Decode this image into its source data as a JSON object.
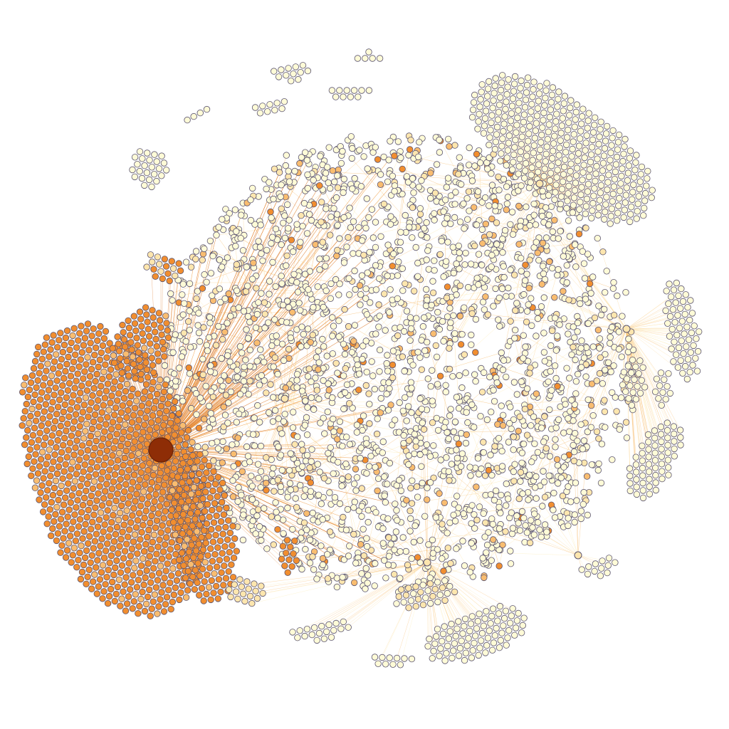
{
  "graph": {
    "kind": "force-directed network",
    "background_color": "#ffffff",
    "node_stroke_color": "#5a5470",
    "palette": {
      "pale": "#fffbd7",
      "light": "#fde6ae",
      "medium": "#f9bd70",
      "strong": "#f18e2f",
      "hub": "#8e2d06"
    },
    "edge_colors": [
      "#fde9a8",
      "#fbd28a",
      "#f6b25a",
      "#f09535",
      "#d96b12"
    ],
    "clusters": [
      {
        "name": "main-core",
        "shade": "pale",
        "mixed": true
      },
      {
        "name": "hub-left-fan",
        "shade": "strong"
      },
      {
        "name": "upper-right-fan",
        "shade": "pale"
      },
      {
        "name": "right-fan",
        "shade": "pale"
      },
      {
        "name": "bottom-fan",
        "shade": "pale"
      },
      {
        "name": "top-satellites",
        "shade": "pale"
      }
    ]
  }
}
